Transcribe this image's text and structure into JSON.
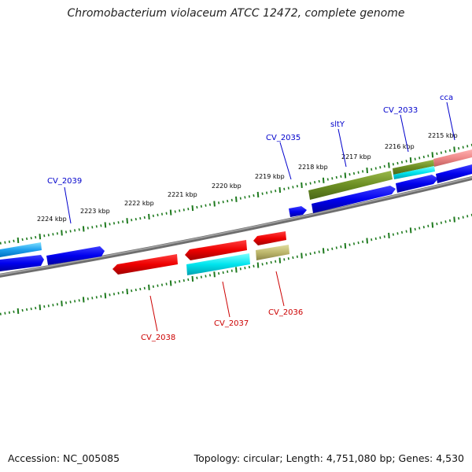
{
  "title": "Chromobacterium violaceum ATCC 12472, complete genome",
  "footer": {
    "accession": "Accession: NC_005085",
    "summary": "Topology: circular; Length: 4,751,080 bp; Genes: 4,530"
  },
  "colors": {
    "backbone": "#7a7a7a",
    "tick": "#1e7a1e",
    "forward_label": "#0000cc",
    "reverse_label": "#cc0000",
    "blue": "#0000ee",
    "red": "#ee0000",
    "cyan": "#00e5ee",
    "olive": "#6b8e23",
    "khaki": "#bdb76b",
    "salmon": "#ee8888"
  },
  "kbp_labels": [
    "2224 kbp",
    "2223 kbp",
    "2222 kbp",
    "2221 kbp",
    "2220 kbp",
    "2219 kbp",
    "2218 kbp",
    "2217 kbp",
    "2216 kbp",
    "2215 kbp"
  ],
  "forward_genes": [
    {
      "name": "CV_2039"
    },
    {
      "name": "CV_2035"
    },
    {
      "name": "sltY"
    },
    {
      "name": "CV_2033"
    },
    {
      "name": "cca"
    }
  ],
  "reverse_genes": [
    {
      "name": "CV_2038"
    },
    {
      "name": "CV_2037"
    },
    {
      "name": "CV_2036"
    }
  ]
}
